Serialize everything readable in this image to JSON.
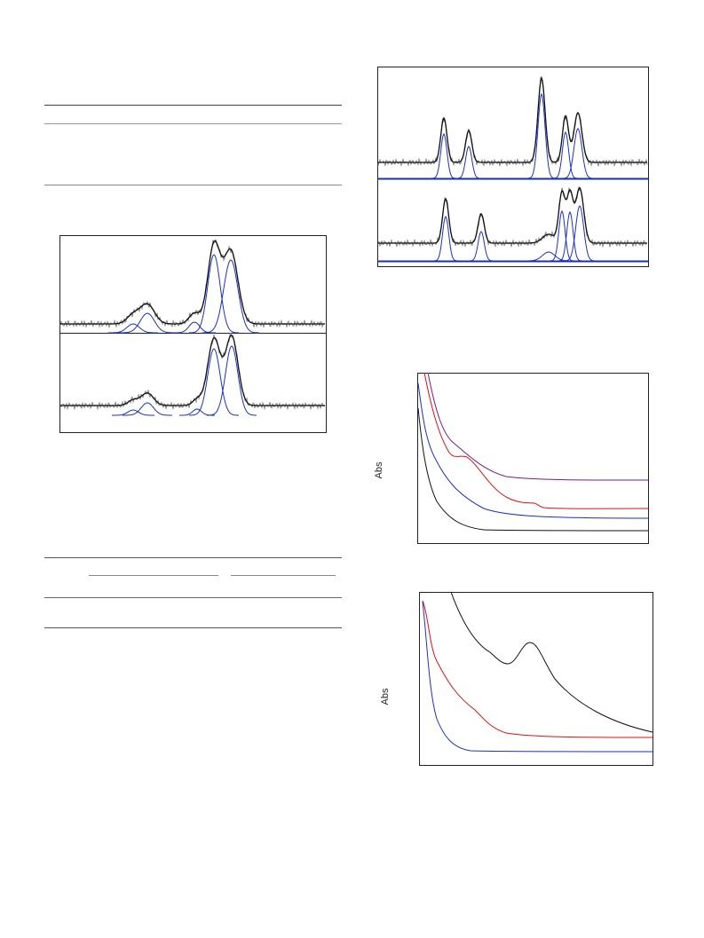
{
  "figures": [
    {
      "y_axis_label": "Abs"
    },
    {
      "y_axis_label": "Abs"
    }
  ]
}
